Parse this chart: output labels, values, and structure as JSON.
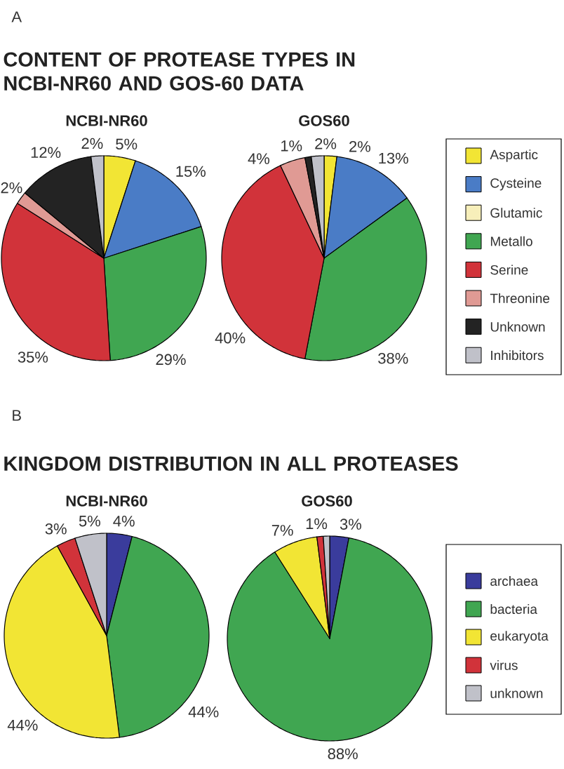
{
  "chart_data": [
    {
      "type": "pie",
      "title": "CONTENT OF PROTEASE TYPES IN NCBI-NR60 AND GOS-60 DATA",
      "subtitle": "NCBI-NR60",
      "annotations": [
        "A"
      ],
      "values": [
        5,
        15,
        null,
        29,
        35,
        2,
        12,
        2
      ],
      "colors": [
        "#f2e534",
        "#4a7cc6",
        "#f7efba",
        "#40a651",
        "#d1333a",
        "#e09a94",
        "#232323",
        "#c0c1c9"
      ],
      "value_labels": [
        "5%",
        "15%",
        null,
        "29%",
        "35%",
        "2%",
        "12%",
        "2%"
      ]
    },
    {
      "type": "pie",
      "subtitle": "GOS60",
      "legend": "right",
      "categories": [
        "Aspartic",
        "Cysteine",
        "Glutamic",
        "Metallo",
        "Serine",
        "Threonine",
        "Unknown",
        "Inhibitors"
      ],
      "values": [
        2,
        13,
        null,
        38,
        40,
        4,
        1,
        2
      ],
      "colors": [
        "#f2e534",
        "#4a7cc6",
        "#f7efba",
        "#40a651",
        "#d1333a",
        "#e09a94",
        "#232323",
        "#c0c1c9"
      ],
      "value_labels": [
        "2%",
        "13%",
        null,
        "38%",
        "40%",
        "4%",
        "1%",
        "2%"
      ]
    },
    {
      "type": "pie",
      "title": "KINGDOM DISTRIBUTION IN ALL PROTEASES",
      "subtitle": "NCBI-NR60",
      "annotations": [
        "B"
      ],
      "values": [
        4,
        44,
        44,
        3,
        5
      ],
      "colors": [
        "#3a3c9c",
        "#40a651",
        "#f2e534",
        "#d1333a",
        "#c0c1c9"
      ],
      "value_labels": [
        "4%",
        "44%",
        "44%",
        "3%",
        "5%"
      ]
    },
    {
      "type": "pie",
      "subtitle": "GOS60",
      "legend": "right",
      "categories": [
        "archaea",
        "bacteria",
        "eukaryota",
        "virus",
        "unknown"
      ],
      "values": [
        3,
        88,
        7,
        1,
        1
      ],
      "colors": [
        "#3a3c9c",
        "#40a651",
        "#f2e534",
        "#d1333a",
        "#c0c1c9"
      ],
      "value_labels": [
        "3%",
        "88%",
        "7%",
        "1%",
        null
      ]
    }
  ]
}
